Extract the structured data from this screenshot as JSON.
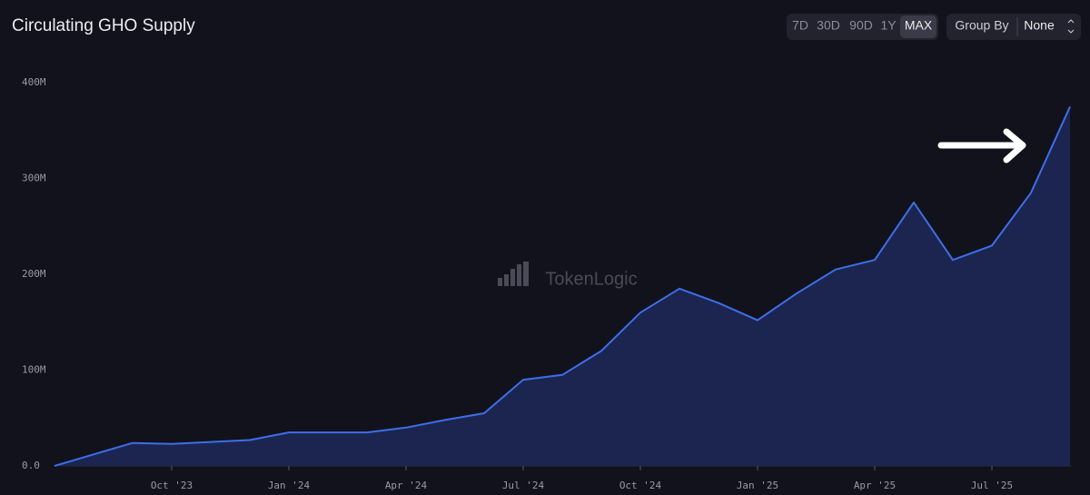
{
  "chart_data": {
    "type": "area",
    "title": "Circulating GHO Supply",
    "watermark": "TokenLogic",
    "ranges": [
      "7D",
      "30D",
      "90D",
      "1Y",
      "MAX"
    ],
    "active_range": "MAX",
    "group_by_label": "Group By",
    "group_by_value": "None",
    "series": [
      {
        "color": "#3d6fe8",
        "fill": "#1b2550",
        "x": [
          "2023-07",
          "2023-08",
          "2023-09",
          "2023-10",
          "2023-11",
          "2023-12",
          "2024-01",
          "2024-02",
          "2024-03",
          "2024-04",
          "2024-05",
          "2024-06",
          "2024-07",
          "2024-08",
          "2024-09",
          "2024-10",
          "2024-11",
          "2024-12",
          "2025-01",
          "2025-02",
          "2025-03",
          "2025-04",
          "2025-05",
          "2025-06",
          "2025-07",
          "2025-08",
          "2025-09"
        ],
        "values": [
          0,
          12000000,
          24000000,
          23000000,
          25000000,
          27000000,
          35000000,
          35000000,
          35000000,
          40000000,
          48000000,
          55000000,
          90000000,
          95000000,
          120000000,
          160000000,
          185000000,
          170000000,
          152000000,
          180000000,
          205000000,
          215000000,
          275000000,
          215000000,
          230000000,
          285000000,
          375000000
        ]
      }
    ],
    "xlim": [
      "2023-07",
      "2025-09"
    ],
    "xticks": [
      {
        "value": "2023-10",
        "label": "Oct '23"
      },
      {
        "value": "2024-01",
        "label": "Jan '24"
      },
      {
        "value": "2024-04",
        "label": "Apr '24"
      },
      {
        "value": "2024-07",
        "label": "Jul '24"
      },
      {
        "value": "2024-10",
        "label": "Oct '24"
      },
      {
        "value": "2025-01",
        "label": "Jan '25"
      },
      {
        "value": "2025-04",
        "label": "Apr '25"
      },
      {
        "value": "2025-07",
        "label": "Jul '25"
      }
    ],
    "ylim": [
      0,
      400000000
    ],
    "yticks": [
      {
        "value": 0,
        "label": "0.0"
      },
      {
        "value": 100000000,
        "label": "100M"
      },
      {
        "value": 200000000,
        "label": "200M"
      },
      {
        "value": 300000000,
        "label": "300M"
      },
      {
        "value": 400000000,
        "label": "400M"
      }
    ]
  }
}
